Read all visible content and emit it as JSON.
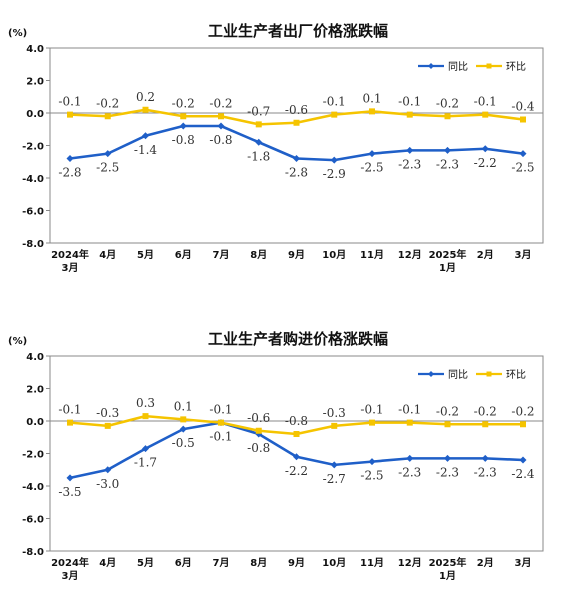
{
  "colors": {
    "yoy": "#1f5fc8",
    "mom": "#f5c400",
    "axis": "#888888"
  },
  "chart_data": [
    {
      "type": "line",
      "title": "工业生产者出厂价格涨跌幅",
      "unit": "(%)",
      "yticks": [
        "4.0",
        "2.0",
        "0.0",
        "-2.0",
        "-4.0",
        "-6.0",
        "-8.0"
      ],
      "ylim": [
        -8,
        4
      ],
      "categories": [
        [
          "2024年",
          "3月"
        ],
        [
          "4月"
        ],
        [
          "5月"
        ],
        [
          "6月"
        ],
        [
          "7月"
        ],
        [
          "8月"
        ],
        [
          "9月"
        ],
        [
          "10月"
        ],
        [
          "11月"
        ],
        [
          "12月"
        ],
        [
          "2025年",
          "1月"
        ],
        [
          "2月"
        ],
        [
          "3月"
        ]
      ],
      "legend_position": "top-right",
      "series": [
        {
          "name": "同比",
          "values": [
            -2.8,
            -2.5,
            -1.4,
            -0.8,
            -0.8,
            -1.8,
            -2.8,
            -2.9,
            -2.5,
            -2.3,
            -2.3,
            -2.2,
            -2.5
          ],
          "labels": [
            "-2.8",
            "-2.5",
            "-1.4",
            "-0.8",
            "-0.8",
            "-1.8",
            "-2.8",
            "-2.9",
            "-2.5",
            "-2.3",
            "-2.3",
            "-2.2",
            "-2.5"
          ]
        },
        {
          "name": "环比",
          "values": [
            -0.1,
            -0.2,
            0.2,
            -0.2,
            -0.2,
            -0.7,
            -0.6,
            -0.1,
            0.1,
            -0.1,
            -0.2,
            -0.1,
            -0.4
          ],
          "labels": [
            "-0.1",
            "-0.2",
            "0.2",
            "-0.2",
            "-0.2",
            "-0.7",
            "-0.6",
            "-0.1",
            "0.1",
            "-0.1",
            "-0.2",
            "-0.1",
            "-0.4"
          ]
        }
      ]
    },
    {
      "type": "line",
      "title": "工业生产者购进价格涨跌幅",
      "unit": "(%)",
      "yticks": [
        "4.0",
        "2.0",
        "0.0",
        "-2.0",
        "-4.0",
        "-6.0",
        "-8.0"
      ],
      "ylim": [
        -8,
        4
      ],
      "categories": [
        [
          "2024年",
          "3月"
        ],
        [
          "4月"
        ],
        [
          "5月"
        ],
        [
          "6月"
        ],
        [
          "7月"
        ],
        [
          "8月"
        ],
        [
          "9月"
        ],
        [
          "10月"
        ],
        [
          "11月"
        ],
        [
          "12月"
        ],
        [
          "2025年",
          "1月"
        ],
        [
          "2月"
        ],
        [
          "3月"
        ]
      ],
      "legend_position": "top-right",
      "series": [
        {
          "name": "同比",
          "values": [
            -3.5,
            -3.0,
            -1.7,
            -0.5,
            -0.1,
            -0.8,
            -2.2,
            -2.7,
            -2.5,
            -2.3,
            -2.3,
            -2.3,
            -2.4
          ],
          "labels": [
            "-3.5",
            "-3.0",
            "-1.7",
            "-0.5",
            "-0.1",
            "-0.8",
            "-2.2",
            "-2.7",
            "-2.5",
            "-2.3",
            "-2.3",
            "-2.3",
            "-2.4"
          ]
        },
        {
          "name": "环比",
          "values": [
            -0.1,
            -0.3,
            0.3,
            0.1,
            -0.1,
            -0.6,
            -0.8,
            -0.3,
            -0.1,
            -0.1,
            -0.2,
            -0.2,
            -0.2
          ],
          "labels": [
            "-0.1",
            "-0.3",
            "0.3",
            "0.1",
            "-0.1",
            "-0.6",
            "-0.8",
            "-0.3",
            "-0.1",
            "-0.1",
            "-0.2",
            "-0.2",
            "-0.2"
          ]
        }
      ]
    }
  ]
}
